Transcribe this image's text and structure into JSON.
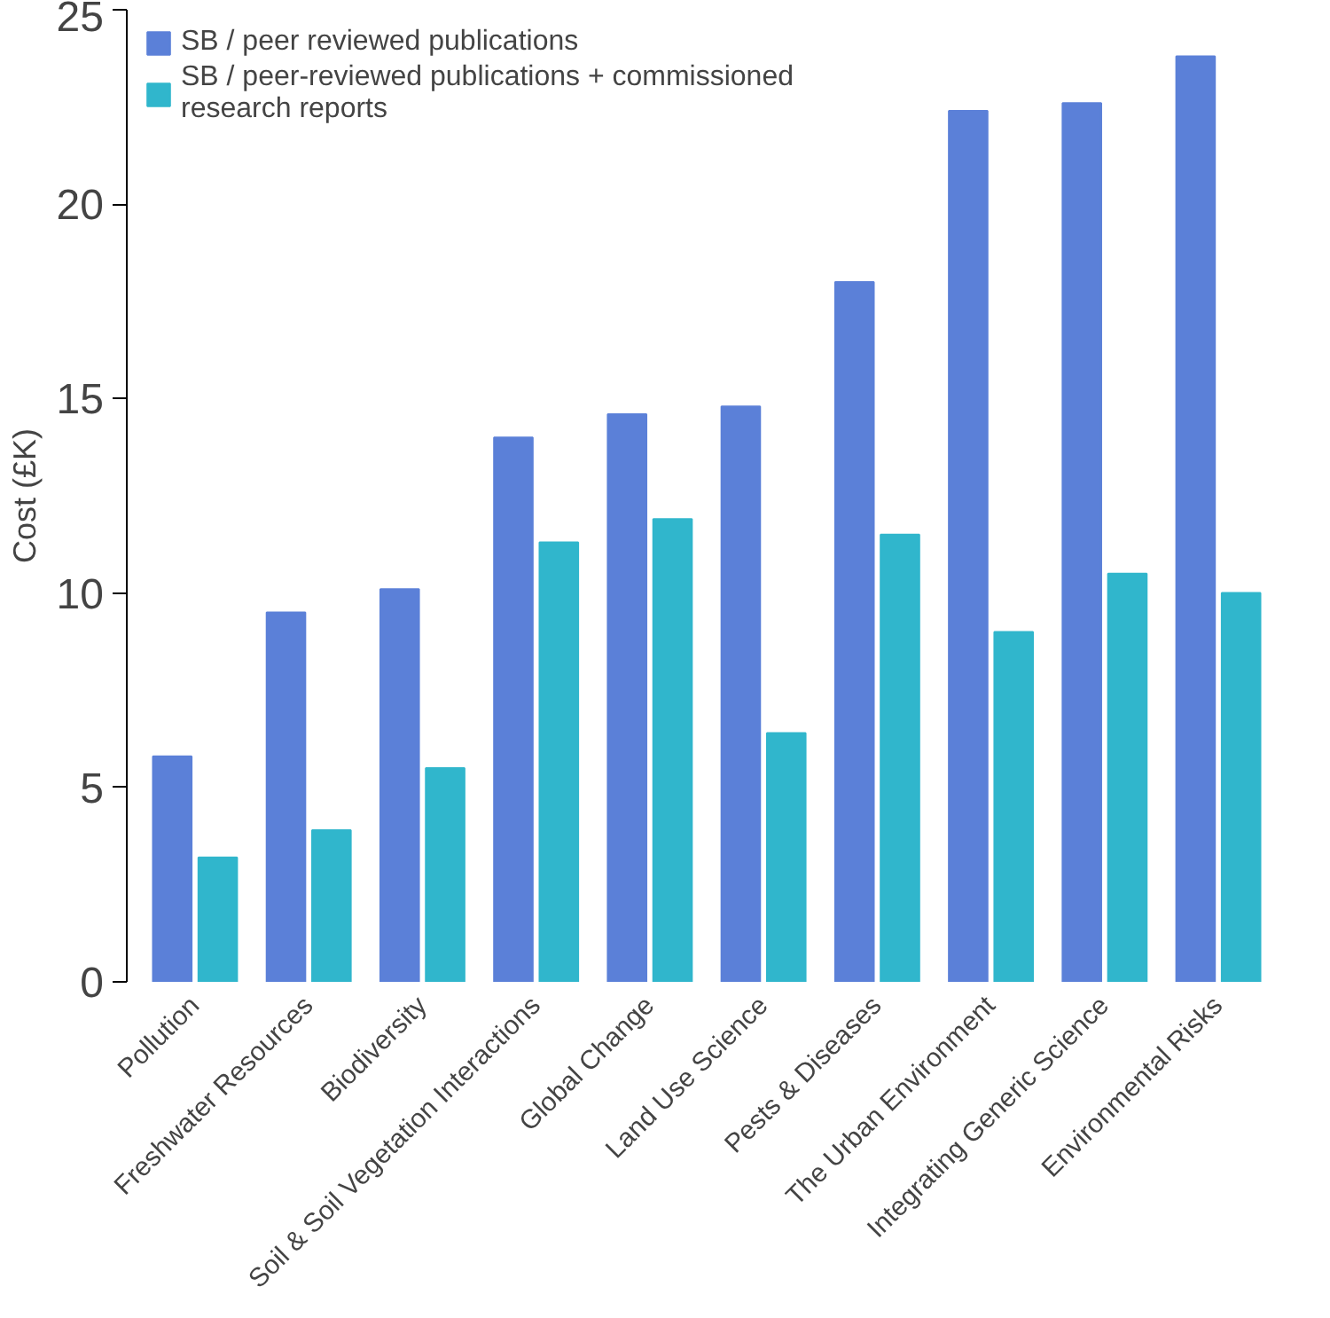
{
  "chart_data": {
    "type": "bar",
    "ylabel": "Cost (£K)",
    "categories": [
      "Pollution",
      "Freshwater Resources",
      "Biodiversity",
      "Soil & Soil Vegetation Interactions",
      "Global Change",
      "Land Use Science",
      "Pests & Diseases",
      "The Urban Environment",
      "Integrating Generic Science",
      "Environmental Risks"
    ],
    "series": [
      {
        "name": "SB / peer reviewed publications",
        "color": "#5b80d8",
        "values": [
          5.8,
          9.5,
          10.1,
          14.0,
          14.6,
          14.8,
          18.0,
          22.4,
          22.6,
          23.8
        ]
      },
      {
        "name": "SB / peer-reviewed publications + commissioned\nresearch reports",
        "color": "#30b6cc",
        "values": [
          3.2,
          3.9,
          5.5,
          11.3,
          11.9,
          6.4,
          11.5,
          9.0,
          10.5,
          10.0
        ]
      }
    ],
    "ylim": [
      0,
      25
    ],
    "yticks": [
      0,
      5,
      10,
      15,
      20,
      25
    ],
    "grid": false,
    "legend": "top left"
  }
}
